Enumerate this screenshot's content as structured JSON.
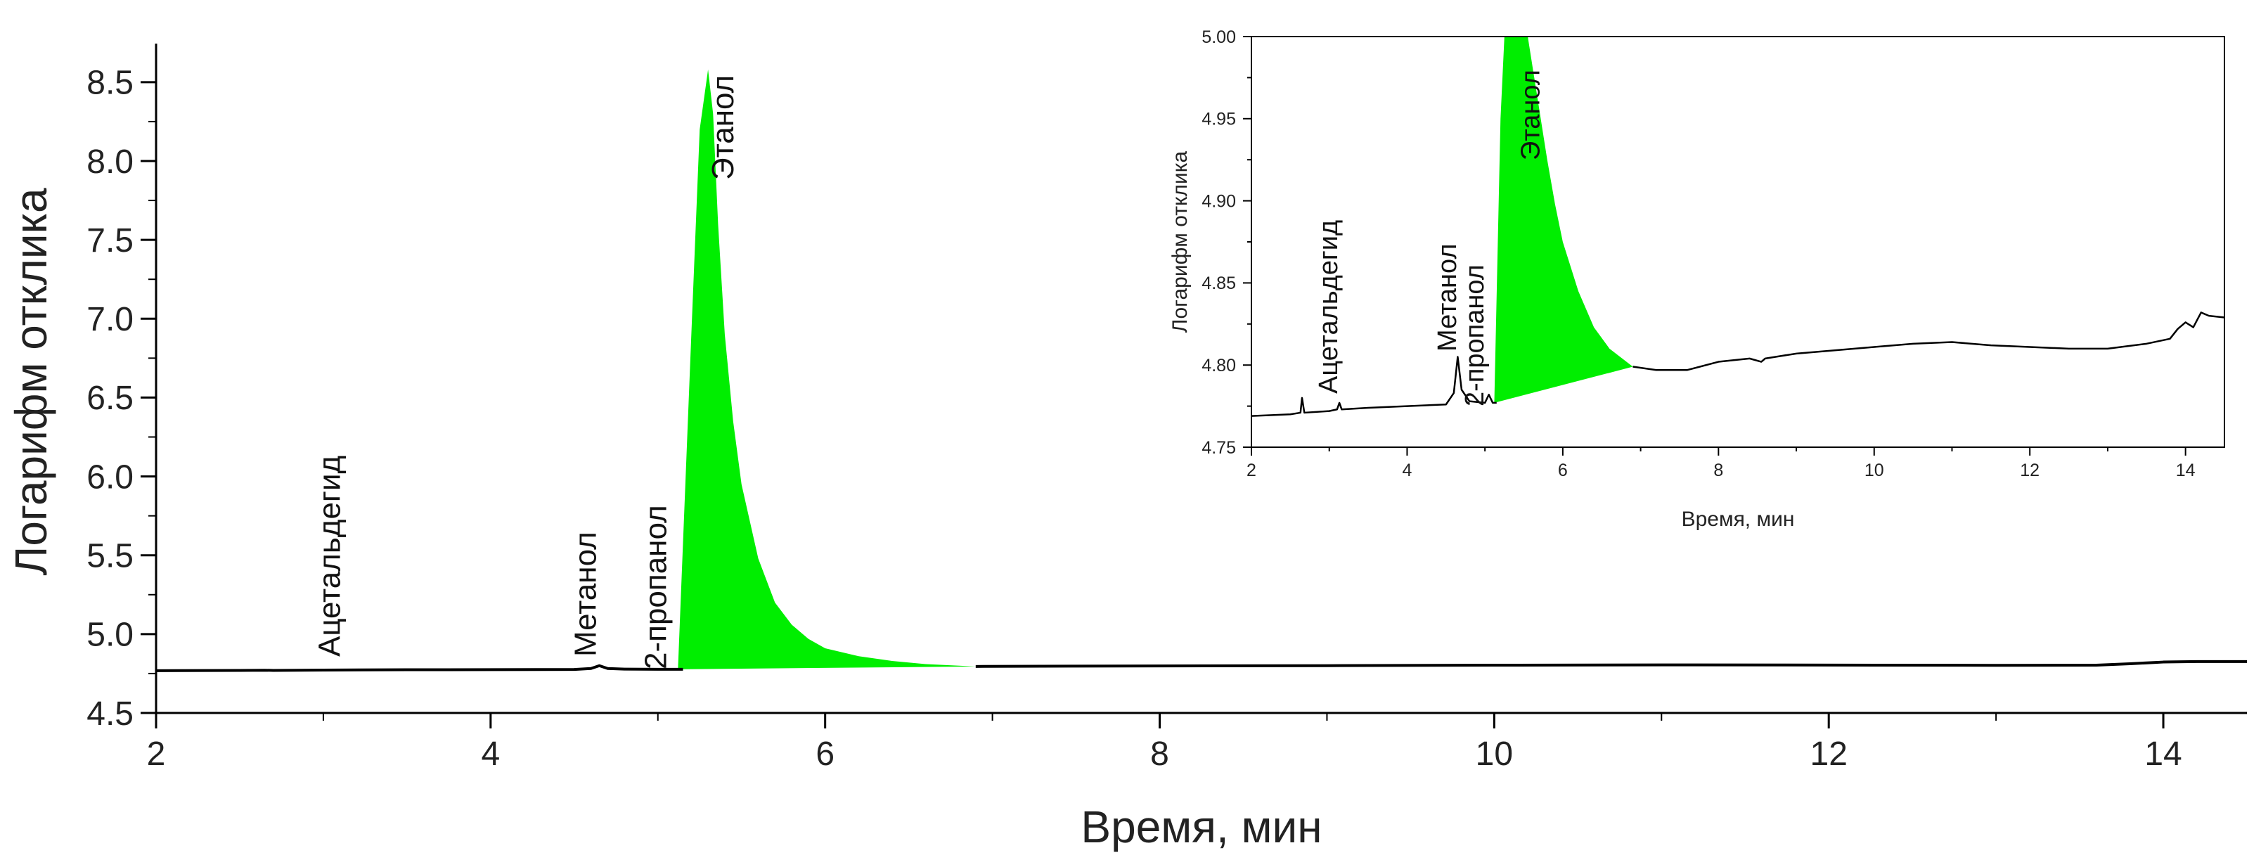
{
  "chart_data": [
    {
      "type": "line",
      "xlabel": "Время, мин",
      "ylabel": "Логарифм отклика",
      "xlim": [
        2,
        14.5
      ],
      "ylim": [
        4.5,
        8.7
      ],
      "xticks": [
        2,
        4,
        6,
        8,
        10,
        12,
        14
      ],
      "yticks": [
        4.5,
        5.0,
        5.5,
        6.0,
        6.5,
        7.0,
        7.5,
        8.0,
        8.5
      ],
      "xtick_labels": [
        "2",
        "4",
        "6",
        "8",
        "10",
        "12",
        "14"
      ],
      "ytick_labels": [
        "4.5",
        "5.0",
        "5.5",
        "6.0",
        "6.5",
        "7.0",
        "7.5",
        "8.0",
        "8.5"
      ],
      "series_color": "#000000",
      "fill_color": "#00ee00",
      "baseline": {
        "x": [
          2.0,
          2.5,
          2.65,
          2.7,
          3.0,
          3.5,
          4.0,
          4.5,
          4.6,
          4.65,
          4.7,
          4.8,
          5.0,
          5.15,
          6.9,
          7.5,
          8.0,
          9.0,
          10.0,
          11.0,
          12.0,
          13.0,
          13.6,
          13.8,
          14.0,
          14.2,
          14.5
        ],
        "y": [
          4.768,
          4.77,
          4.771,
          4.77,
          4.772,
          4.774,
          4.775,
          4.776,
          4.782,
          4.8,
          4.782,
          4.778,
          4.777,
          4.777,
          4.795,
          4.797,
          4.798,
          4.8,
          4.803,
          4.805,
          4.804,
          4.802,
          4.803,
          4.812,
          4.823,
          4.826,
          4.826
        ]
      },
      "peak_fill": {
        "x": [
          5.12,
          5.2,
          5.25,
          5.3,
          5.33,
          5.36,
          5.4,
          5.45,
          5.5,
          5.6,
          5.7,
          5.8,
          5.9,
          6.0,
          6.2,
          6.4,
          6.6,
          6.9
        ],
        "y": [
          4.777,
          6.9,
          8.2,
          8.58,
          8.3,
          7.6,
          6.9,
          6.35,
          5.95,
          5.48,
          5.2,
          5.06,
          4.97,
          4.91,
          4.86,
          4.83,
          4.81,
          4.795
        ]
      },
      "annotations": [
        {
          "text": "Ацетальдегид",
          "x": 3.1
        },
        {
          "text": "Метанол",
          "x": 4.63
        },
        {
          "text": "2-пропанол",
          "x": 5.05
        },
        {
          "text": "Этанол",
          "x": 5.45
        }
      ]
    },
    {
      "type": "line",
      "xlabel": "Время, мин",
      "ylabel": "Логарифм отклика",
      "xlim": [
        2,
        14.5
      ],
      "ylim": [
        4.75,
        5.0
      ],
      "xticks": [
        2,
        4,
        6,
        8,
        10,
        12,
        14
      ],
      "yticks": [
        4.75,
        4.8,
        4.85,
        4.9,
        4.95,
        5.0
      ],
      "xtick_labels": [
        "2",
        "4",
        "6",
        "8",
        "10",
        "12",
        "14"
      ],
      "ytick_labels": [
        "4.75",
        "4.80",
        "4.85",
        "4.90",
        "4.95",
        "5.00"
      ],
      "series_color": "#000000",
      "fill_color": "#00ee00",
      "baseline": {
        "x": [
          2.0,
          2.5,
          2.63,
          2.65,
          2.68,
          3.0,
          3.1,
          3.13,
          3.16,
          3.5,
          4.0,
          4.5,
          4.6,
          4.65,
          4.7,
          4.8,
          5.0,
          5.05,
          5.1,
          5.15,
          6.9,
          7.2,
          7.6,
          8.0,
          8.4,
          8.55,
          8.6,
          9.0,
          10.0,
          10.5,
          11.0,
          11.5,
          12.0,
          12.5,
          13.0,
          13.5,
          13.8,
          13.9,
          14.0,
          14.1,
          14.2,
          14.3,
          14.5
        ],
        "y": [
          4.769,
          4.77,
          4.771,
          4.78,
          4.771,
          4.772,
          4.773,
          4.777,
          4.773,
          4.774,
          4.775,
          4.776,
          4.783,
          4.805,
          4.785,
          4.778,
          4.777,
          4.782,
          4.777,
          4.777,
          4.799,
          4.797,
          4.797,
          4.802,
          4.804,
          4.802,
          4.804,
          4.807,
          4.811,
          4.813,
          4.814,
          4.812,
          4.811,
          4.81,
          4.81,
          4.813,
          4.816,
          4.822,
          4.826,
          4.823,
          4.832,
          4.83,
          4.829
        ]
      },
      "peak_fill": {
        "x": [
          5.12,
          5.2,
          5.25,
          5.5,
          5.55,
          5.6,
          5.7,
          5.8,
          5.9,
          6.0,
          6.2,
          6.4,
          6.6,
          6.9
        ],
        "y": [
          4.777,
          4.95,
          5.0,
          5.0,
          5.0,
          4.985,
          4.955,
          4.925,
          4.898,
          4.875,
          4.845,
          4.823,
          4.81,
          4.799
        ]
      },
      "annotations": [
        {
          "text": "Ацетальдегид",
          "x": 3.1
        },
        {
          "text": "Метанол",
          "x": 4.63
        },
        {
          "text": "2-пропанол",
          "x": 4.98
        },
        {
          "text": "Этанол",
          "x": 5.7
        }
      ]
    }
  ]
}
